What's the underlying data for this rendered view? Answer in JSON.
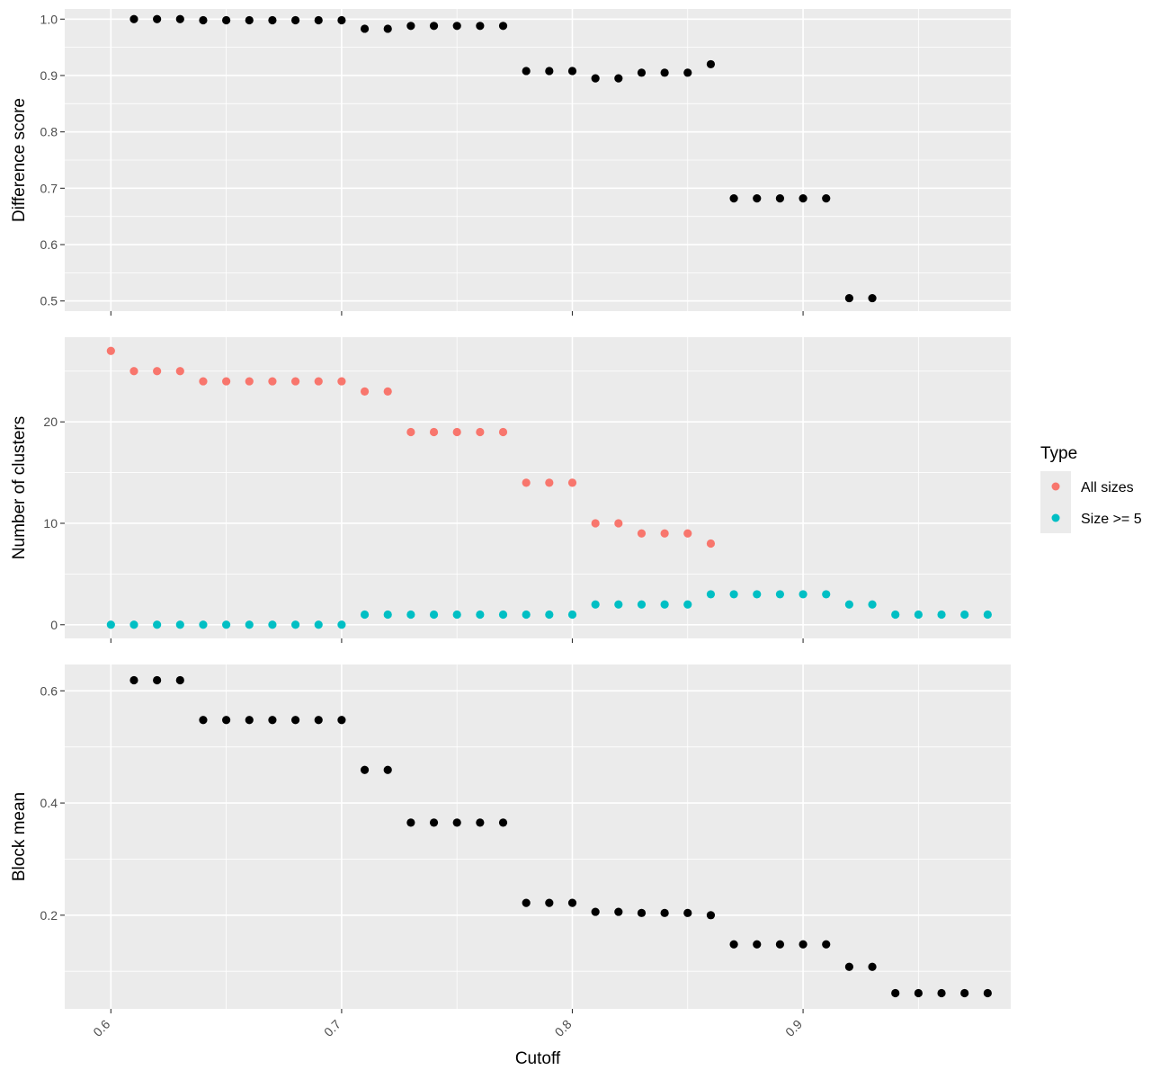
{
  "chart_data": {
    "type": "scatter",
    "x_label": "Cutoff",
    "x_lim": [
      0.58,
      0.99
    ],
    "x_ticks": [
      0.6,
      0.7,
      0.8,
      0.9
    ],
    "x_tick_labels": [
      "0.6",
      "0.7",
      "0.8",
      "0.9"
    ],
    "panels": [
      {
        "id": "difference",
        "y_label": "Difference score",
        "y_lim": [
          0.482,
          1.018
        ],
        "y_ticks": [
          0.5,
          0.6,
          0.7,
          0.8,
          0.9,
          1.0
        ],
        "y_tick_labels": [
          "0.5",
          "0.6",
          "0.7",
          "0.8",
          "0.9",
          "1.0"
        ],
        "series": [
          {
            "color": "#000000",
            "x": [
              0.61,
              0.62,
              0.63,
              0.64,
              0.65,
              0.66,
              0.67,
              0.68,
              0.69,
              0.7,
              0.71,
              0.72,
              0.73,
              0.74,
              0.75,
              0.76,
              0.77,
              0.78,
              0.79,
              0.8,
              0.81,
              0.82,
              0.83,
              0.84,
              0.85,
              0.86,
              0.87,
              0.88,
              0.89,
              0.9,
              0.91,
              0.92,
              0.93
            ],
            "y": [
              1.0,
              1.0,
              1.0,
              0.998,
              0.998,
              0.998,
              0.998,
              0.998,
              0.998,
              0.998,
              0.983,
              0.983,
              0.988,
              0.988,
              0.988,
              0.988,
              0.988,
              0.908,
              0.908,
              0.908,
              0.895,
              0.895,
              0.905,
              0.905,
              0.905,
              0.92,
              0.682,
              0.682,
              0.682,
              0.682,
              0.682,
              0.505,
              0.505
            ]
          }
        ]
      },
      {
        "id": "clusters",
        "y_label": "Number of clusters",
        "y_lim": [
          -1.35,
          28.35
        ],
        "y_ticks": [
          0,
          10,
          20
        ],
        "y_tick_labels": [
          "0",
          "10",
          "20"
        ],
        "series": [
          {
            "name": "All sizes",
            "color": "#F8766D",
            "x": [
              0.6,
              0.61,
              0.62,
              0.63,
              0.64,
              0.65,
              0.66,
              0.67,
              0.68,
              0.69,
              0.7,
              0.71,
              0.72,
              0.73,
              0.74,
              0.75,
              0.76,
              0.77,
              0.78,
              0.79,
              0.8,
              0.81,
              0.82,
              0.83,
              0.84,
              0.85,
              0.86
            ],
            "y": [
              27,
              25,
              25,
              25,
              24,
              24,
              24,
              24,
              24,
              24,
              24,
              23,
              23,
              19,
              19,
              19,
              19,
              19,
              14,
              14,
              14,
              10,
              10,
              9,
              9,
              9,
              8
            ]
          },
          {
            "name": "Size >= 5",
            "color": "#00BFC4",
            "x": [
              0.6,
              0.61,
              0.62,
              0.63,
              0.64,
              0.65,
              0.66,
              0.67,
              0.68,
              0.69,
              0.7,
              0.71,
              0.72,
              0.73,
              0.74,
              0.75,
              0.76,
              0.77,
              0.78,
              0.79,
              0.8,
              0.81,
              0.82,
              0.83,
              0.84,
              0.85,
              0.86,
              0.87,
              0.88,
              0.89,
              0.9,
              0.91,
              0.92,
              0.93,
              0.94,
              0.95,
              0.96,
              0.97,
              0.98
            ],
            "y": [
              0,
              0,
              0,
              0,
              0,
              0,
              0,
              0,
              0,
              0,
              0,
              1,
              1,
              1,
              1,
              1,
              1,
              1,
              1,
              1,
              1,
              2,
              2,
              2,
              2,
              2,
              3,
              3,
              3,
              3,
              3,
              3,
              2,
              2,
              1,
              1,
              1,
              1,
              1
            ]
          }
        ]
      },
      {
        "id": "block",
        "y_label": "Block mean",
        "y_lim": [
          0.033,
          0.647
        ],
        "y_ticks": [
          0.2,
          0.4,
          0.6
        ],
        "y_tick_labels": [
          "0.2",
          "0.4",
          "0.6"
        ],
        "series": [
          {
            "color": "#000000",
            "x": [
              0.61,
              0.62,
              0.63,
              0.64,
              0.65,
              0.66,
              0.67,
              0.68,
              0.69,
              0.7,
              0.71,
              0.72,
              0.73,
              0.74,
              0.75,
              0.76,
              0.77,
              0.78,
              0.79,
              0.8,
              0.81,
              0.82,
              0.83,
              0.84,
              0.85,
              0.86,
              0.87,
              0.88,
              0.89,
              0.9,
              0.91,
              0.92,
              0.93,
              0.94,
              0.95,
              0.96,
              0.97,
              0.98
            ],
            "y": [
              0.619,
              0.619,
              0.619,
              0.548,
              0.548,
              0.548,
              0.548,
              0.548,
              0.548,
              0.548,
              0.459,
              0.459,
              0.365,
              0.365,
              0.365,
              0.365,
              0.365,
              0.222,
              0.222,
              0.222,
              0.206,
              0.206,
              0.204,
              0.204,
              0.204,
              0.2,
              0.148,
              0.148,
              0.148,
              0.148,
              0.148,
              0.108,
              0.108,
              0.061,
              0.061,
              0.061,
              0.061,
              0.061
            ]
          }
        ]
      }
    ],
    "legend": {
      "title": "Type",
      "position": "right",
      "items": [
        {
          "label": "All sizes",
          "color": "#F8766D"
        },
        {
          "label": "Size >= 5",
          "color": "#00BFC4"
        }
      ]
    }
  }
}
